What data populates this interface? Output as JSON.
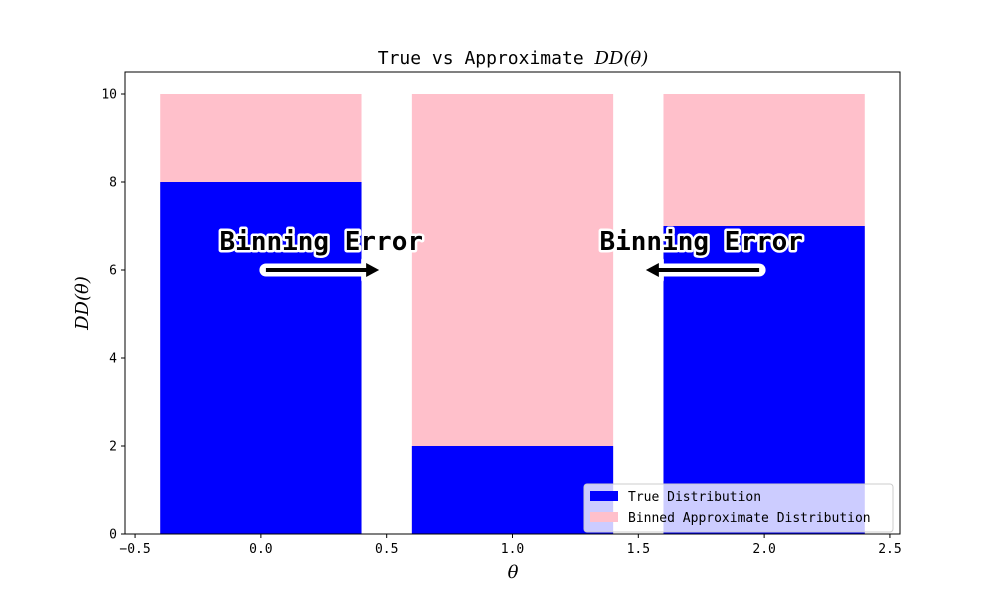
{
  "chart_data": {
    "type": "bar",
    "title_prefix": "True vs Approximate ",
    "title_math": "DD(θ)",
    "xlabel": "θ",
    "ylabel": "DD(θ)",
    "xlim": [
      -0.54,
      2.54
    ],
    "ylim": [
      0,
      10.5
    ],
    "x_ticks": [
      -0.5,
      0.0,
      0.5,
      1.0,
      1.5,
      2.0,
      2.5
    ],
    "x_tick_labels": [
      "−0.5",
      "0.0",
      "0.5",
      "1.0",
      "1.5",
      "2.0",
      "2.5"
    ],
    "y_ticks": [
      0,
      2,
      4,
      6,
      8,
      10
    ],
    "y_tick_labels": [
      "0",
      "2",
      "4",
      "6",
      "8",
      "10"
    ],
    "bar_width": 0.8,
    "x": [
      0,
      1,
      2
    ],
    "series": [
      {
        "name": "Binned Approximate Distribution",
        "color": "#ffc0cb",
        "values": [
          10,
          10,
          10
        ]
      },
      {
        "name": "True Distribution",
        "color": "#0000ff",
        "values": [
          8,
          2,
          7
        ]
      }
    ],
    "grid": false,
    "legend_position": "lower-right",
    "legend_entries": [
      {
        "label": "True Distribution",
        "color": "#0000ff"
      },
      {
        "label": "Binned Approximate Distribution",
        "color": "#ffc0cb"
      }
    ],
    "annotations": [
      {
        "text": "Binning Error",
        "text_x": 0.24,
        "text_y": 6.45,
        "arrow_from": [
          0.02,
          6.0
        ],
        "arrow_to": [
          0.47,
          6.0
        ]
      },
      {
        "text": "Binning Error",
        "text_x": 1.75,
        "text_y": 6.45,
        "arrow_from": [
          1.98,
          6.0
        ],
        "arrow_to": [
          1.53,
          6.0
        ]
      }
    ]
  }
}
